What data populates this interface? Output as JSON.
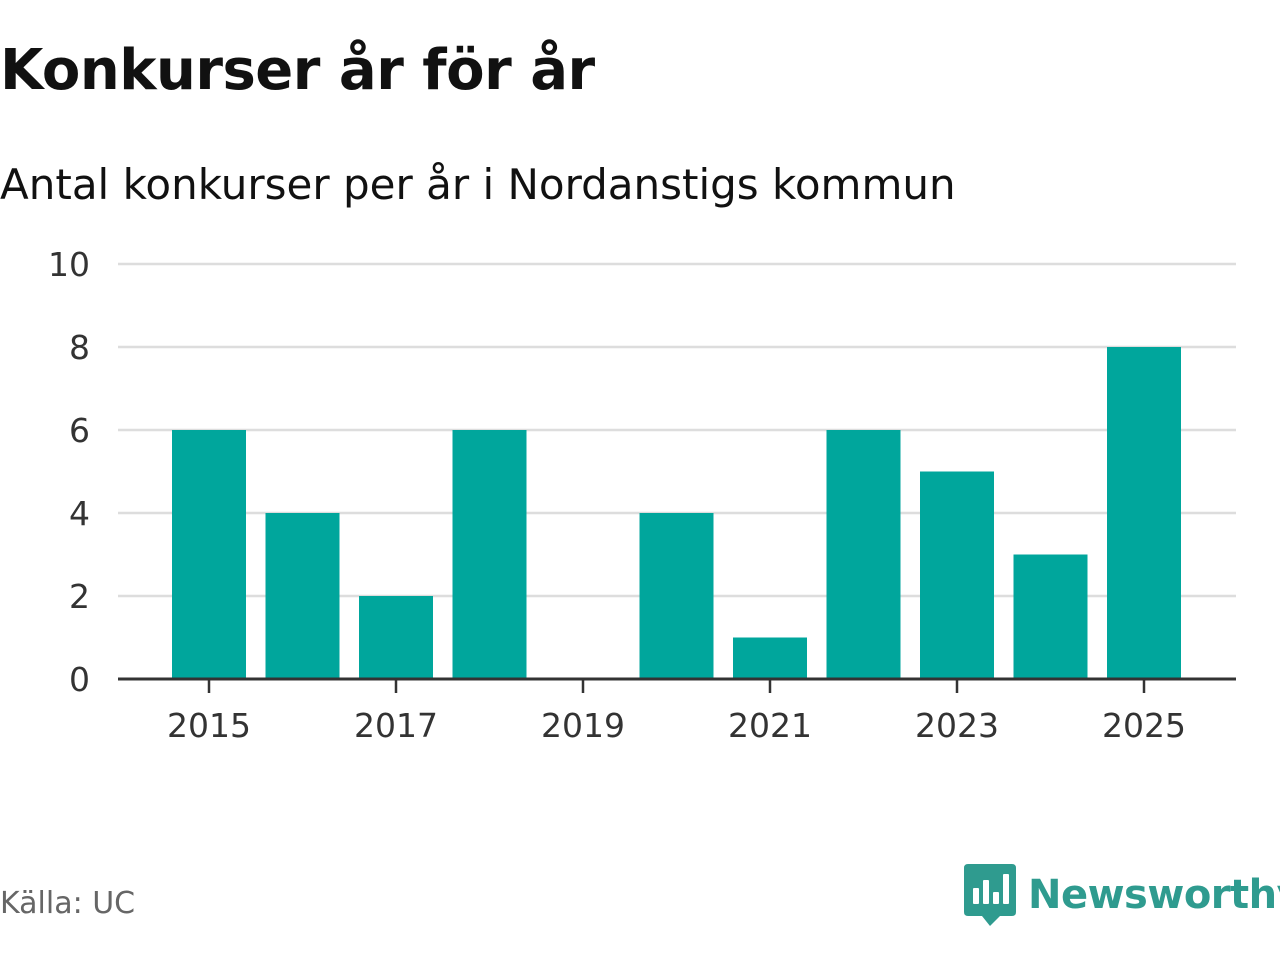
{
  "header": {
    "title": "Konkurser år för år",
    "subtitle": "Antal konkurser per år i Nordanstigs kommun"
  },
  "footer": {
    "source": "Källa: UC",
    "brand": "Newsworthy",
    "brand_icon": "newsworthy-logo-icon"
  },
  "colors": {
    "bar": "#00a69c",
    "grid": "#dddddd",
    "axis": "#333333",
    "brand": "#2f9b8f"
  },
  "chart_data": {
    "type": "bar",
    "title": "Konkurser år för år",
    "subtitle": "Antal konkurser per år i Nordanstigs kommun",
    "categories": [
      "2015",
      "2016",
      "2017",
      "2018",
      "2019",
      "2020",
      "2021",
      "2022",
      "2023",
      "2024",
      "2025"
    ],
    "values": [
      6,
      4,
      2,
      6,
      0,
      4,
      1,
      6,
      5,
      3,
      8
    ],
    "x_tick_labels": [
      "2015",
      "2017",
      "2019",
      "2021",
      "2023",
      "2025"
    ],
    "y_ticks": [
      0,
      2,
      4,
      6,
      8,
      10
    ],
    "ylim": [
      0,
      10
    ],
    "xlabel": "",
    "ylabel": "",
    "grid": true,
    "legend": "none"
  }
}
